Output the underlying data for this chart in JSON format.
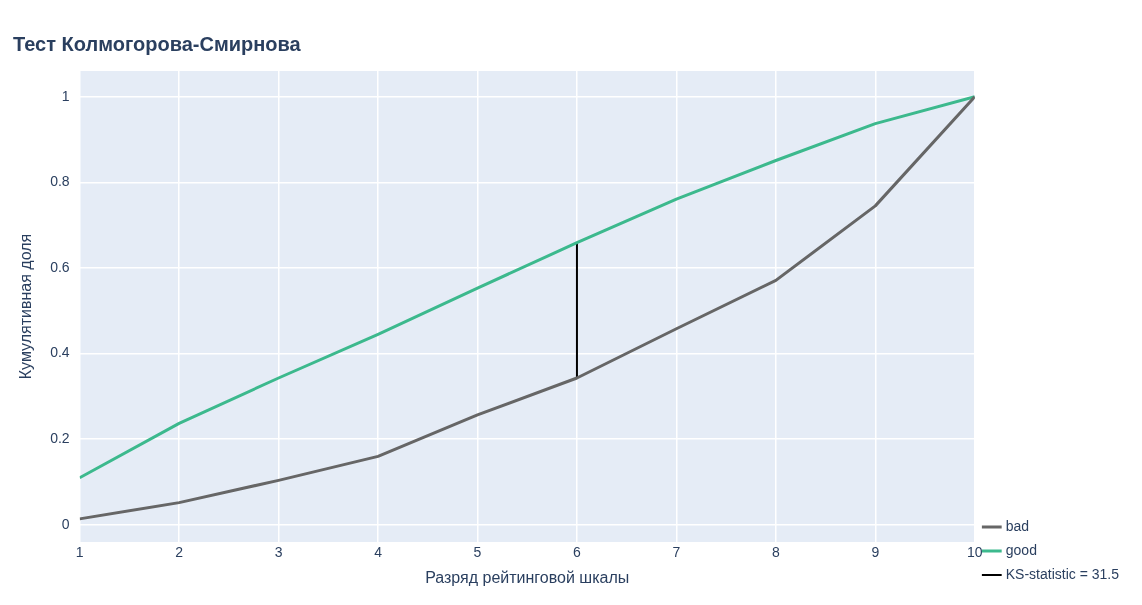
{
  "chart_data": {
    "type": "line",
    "title": "Тест Колмогорова-Смирнова",
    "xlabel": "Разряд рейтинговой шкалы",
    "ylabel": "Кумулятивная доля",
    "x": [
      1,
      2,
      3,
      4,
      5,
      6,
      7,
      8,
      9,
      10
    ],
    "series": [
      {
        "name": "bad",
        "color": "#666666",
        "values": [
          0.014,
          0.052,
          0.104,
          0.16,
          0.257,
          0.343,
          0.458,
          0.571,
          0.745,
          1
        ]
      },
      {
        "name": "good",
        "color": "#3cb98d",
        "values": [
          0.11,
          0.237,
          0.343,
          0.445,
          0.553,
          0.659,
          0.761,
          0.851,
          0.937,
          1
        ]
      },
      {
        "name": "KS-statistic = 31.5",
        "color": "#000000",
        "type": "line",
        "x": [
          6,
          6
        ],
        "values": [
          0.343,
          0.659
        ]
      }
    ],
    "xlim": [
      1,
      10
    ],
    "xticks": [
      1,
      2,
      3,
      4,
      5,
      6,
      7,
      8,
      9,
      10
    ],
    "ylim": [
      -0.04,
      1.06
    ],
    "yticks": [
      0,
      0.2,
      0.4,
      0.6,
      0.8,
      1
    ],
    "grid": true,
    "legend": "right",
    "marker": "none",
    "line_style": "solid"
  }
}
